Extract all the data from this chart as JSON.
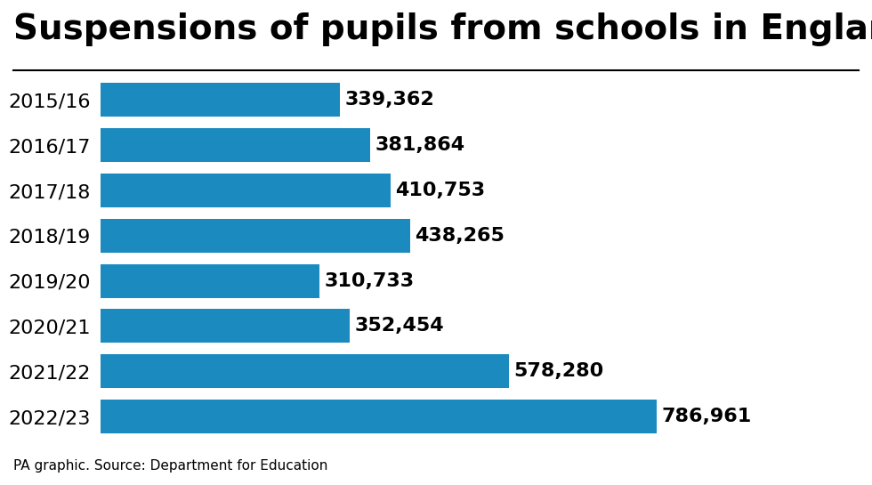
{
  "title": "Suspensions of pupils from schools in England",
  "source": "PA graphic. Source: Department for Education",
  "categories": [
    "2015/16",
    "2016/17",
    "2017/18",
    "2018/19",
    "2019/20",
    "2020/21",
    "2021/22",
    "2022/23"
  ],
  "values": [
    339362,
    381864,
    410753,
    438265,
    310733,
    352454,
    578280,
    786961
  ],
  "labels": [
    "339,362",
    "381,864",
    "410,753",
    "438,265",
    "310,733",
    "352,454",
    "578,280",
    "786,961"
  ],
  "bar_color": "#1a8abf",
  "background_color": "#ffffff",
  "title_fontsize": 28,
  "label_fontsize": 16,
  "category_fontsize": 16,
  "source_fontsize": 11,
  "xlim_max": 870000
}
